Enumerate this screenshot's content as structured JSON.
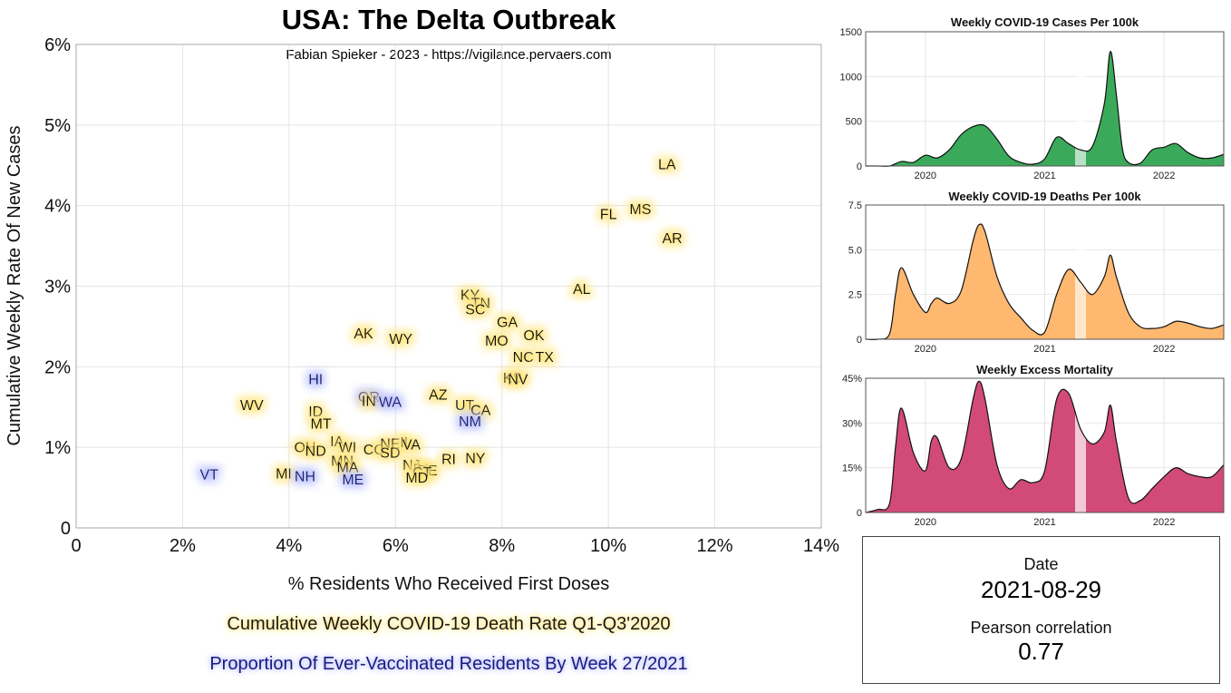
{
  "title": "USA: The Delta Outbreak",
  "subtitle": "Fabian Spieker - 2023 - https://vigilance.pervaers.com",
  "legend_death_rate": "Cumulative Weekly COVID-19 Death Rate Q1-Q3'2020",
  "legend_vaccinated": "Proportion Of Ever-Vaccinated Residents By Week 27/2021",
  "info": {
    "date_label": "Date",
    "date_value": "2021-08-29",
    "corr_label": "Pearson correlation",
    "corr_value": "0.77"
  },
  "colors": {
    "high_death_glow": "#ffe680",
    "low_death_glow": "#b8bfff",
    "cases_fill": "#3aaa5a",
    "deaths_fill": "#ffb870",
    "excess_fill": "#d24a78"
  },
  "chart_data": [
    {
      "type": "scatter",
      "title": "USA: The Delta Outbreak",
      "xlabel": "% Residents Who Received First Doses",
      "ylabel": "Cumulative Weekly Rate Of New Cases",
      "xlim": [
        0,
        14
      ],
      "ylim": [
        0,
        6
      ],
      "xticks": [
        "0",
        "2%",
        "4%",
        "6%",
        "8%",
        "10%",
        "12%",
        "14%"
      ],
      "yticks": [
        "0",
        "1%",
        "2%",
        "3%",
        "4%",
        "5%",
        "6%"
      ],
      "grid": true,
      "points": [
        {
          "label": "LA",
          "x": 11.1,
          "y": 4.52,
          "group": "high"
        },
        {
          "label": "FL",
          "x": 10.0,
          "y": 3.9,
          "group": "high"
        },
        {
          "label": "MS",
          "x": 10.6,
          "y": 3.96,
          "group": "high"
        },
        {
          "label": "AR",
          "x": 11.2,
          "y": 3.6,
          "group": "high"
        },
        {
          "label": "AL",
          "x": 9.5,
          "y": 2.97,
          "group": "high"
        },
        {
          "label": "KY",
          "x": 7.4,
          "y": 2.9,
          "group": "high"
        },
        {
          "label": "TN",
          "x": 7.6,
          "y": 2.8,
          "group": "high"
        },
        {
          "label": "SC",
          "x": 7.5,
          "y": 2.72,
          "group": "high"
        },
        {
          "label": "GA",
          "x": 8.1,
          "y": 2.56,
          "group": "high"
        },
        {
          "label": "OK",
          "x": 8.6,
          "y": 2.4,
          "group": "high"
        },
        {
          "label": "MO",
          "x": 7.9,
          "y": 2.33,
          "group": "high"
        },
        {
          "label": "NC",
          "x": 8.4,
          "y": 2.13,
          "group": "high"
        },
        {
          "label": "TX",
          "x": 8.8,
          "y": 2.13,
          "group": "high"
        },
        {
          "label": "KS",
          "x": 8.2,
          "y": 1.87,
          "group": "high"
        },
        {
          "label": "NV",
          "x": 8.3,
          "y": 1.85,
          "group": "high"
        },
        {
          "label": "AK",
          "x": 5.4,
          "y": 2.42,
          "group": "high"
        },
        {
          "label": "WY",
          "x": 6.1,
          "y": 2.35,
          "group": "high"
        },
        {
          "label": "HI",
          "x": 4.5,
          "y": 1.85,
          "group": "low"
        },
        {
          "label": "OR",
          "x": 5.5,
          "y": 1.63,
          "group": "low"
        },
        {
          "label": "IN",
          "x": 5.5,
          "y": 1.58,
          "group": "high"
        },
        {
          "label": "WA",
          "x": 5.9,
          "y": 1.57,
          "group": "low"
        },
        {
          "label": "AZ",
          "x": 6.8,
          "y": 1.66,
          "group": "high"
        },
        {
          "label": "UT",
          "x": 7.3,
          "y": 1.53,
          "group": "high"
        },
        {
          "label": "CA",
          "x": 7.6,
          "y": 1.47,
          "group": "high"
        },
        {
          "label": "NM",
          "x": 7.4,
          "y": 1.33,
          "group": "low"
        },
        {
          "label": "WV",
          "x": 3.3,
          "y": 1.53,
          "group": "high"
        },
        {
          "label": "ID",
          "x": 4.5,
          "y": 1.45,
          "group": "high"
        },
        {
          "label": "MT",
          "x": 4.6,
          "y": 1.3,
          "group": "high"
        },
        {
          "label": "IA",
          "x": 4.9,
          "y": 1.08,
          "group": "high"
        },
        {
          "label": "OH",
          "x": 4.3,
          "y": 1.01,
          "group": "high"
        },
        {
          "label": "ND",
          "x": 4.5,
          "y": 0.96,
          "group": "high"
        },
        {
          "label": "WI",
          "x": 5.1,
          "y": 1.01,
          "group": "high"
        },
        {
          "label": "MN",
          "x": 5.0,
          "y": 0.84,
          "group": "high"
        },
        {
          "label": "MA",
          "x": 5.1,
          "y": 0.76,
          "group": "high"
        },
        {
          "label": "ME",
          "x": 5.2,
          "y": 0.61,
          "group": "low"
        },
        {
          "label": "CO",
          "x": 5.6,
          "y": 0.98,
          "group": "high"
        },
        {
          "label": "NE",
          "x": 5.9,
          "y": 1.05,
          "group": "high"
        },
        {
          "label": "SD",
          "x": 5.9,
          "y": 0.94,
          "group": "high"
        },
        {
          "label": "IL",
          "x": 6.2,
          "y": 1.07,
          "group": "high"
        },
        {
          "label": "VA",
          "x": 6.3,
          "y": 1.04,
          "group": "high"
        },
        {
          "label": "NJ",
          "x": 6.3,
          "y": 0.79,
          "group": "high"
        },
        {
          "label": "PA",
          "x": 6.5,
          "y": 0.74,
          "group": "high"
        },
        {
          "label": "DE",
          "x": 6.6,
          "y": 0.72,
          "group": "high"
        },
        {
          "label": "CT",
          "x": 6.5,
          "y": 0.7,
          "group": "high"
        },
        {
          "label": "MD",
          "x": 6.4,
          "y": 0.63,
          "group": "high"
        },
        {
          "label": "RI",
          "x": 7.0,
          "y": 0.86,
          "group": "high"
        },
        {
          "label": "NY",
          "x": 7.5,
          "y": 0.87,
          "group": "high"
        },
        {
          "label": "VT",
          "x": 2.5,
          "y": 0.67,
          "group": "low"
        },
        {
          "label": "MI",
          "x": 3.9,
          "y": 0.68,
          "group": "high"
        },
        {
          "label": "NH",
          "x": 4.3,
          "y": 0.65,
          "group": "low"
        }
      ]
    },
    {
      "type": "area",
      "title": "Weekly COVID-19 Cases Per 100k",
      "ylim": [
        0,
        1500
      ],
      "yticks": [
        "0",
        "500",
        "1000",
        "1500"
      ],
      "xticks": [
        "2020",
        "2021",
        "2022"
      ],
      "xlim": [
        2019.5,
        2022.5
      ],
      "highlight_x": 2021.3,
      "x": [
        2019.5,
        2019.6,
        2019.7,
        2019.8,
        2019.9,
        2020.0,
        2020.1,
        2020.2,
        2020.3,
        2020.4,
        2020.5,
        2020.6,
        2020.7,
        2020.8,
        2020.9,
        2021.0,
        2021.1,
        2021.2,
        2021.3,
        2021.4,
        2021.5,
        2021.55,
        2021.6,
        2021.65,
        2021.7,
        2021.8,
        2021.9,
        2022.0,
        2022.1,
        2022.2,
        2022.3,
        2022.4,
        2022.5
      ],
      "values": [
        0,
        0,
        0,
        50,
        40,
        120,
        90,
        180,
        350,
        440,
        450,
        300,
        110,
        40,
        20,
        80,
        320,
        250,
        180,
        220,
        700,
        1280,
        800,
        200,
        40,
        30,
        180,
        210,
        250,
        150,
        90,
        90,
        130
      ]
    },
    {
      "type": "area",
      "title": "Weekly COVID-19 Deaths Per 100k",
      "ylim": [
        0,
        7.5
      ],
      "yticks": [
        "0",
        "2.5",
        "5.0",
        "7.5"
      ],
      "xticks": [
        "2020",
        "2021",
        "2022"
      ],
      "xlim": [
        2019.5,
        2022.5
      ],
      "highlight_x": 2021.3,
      "x": [
        2019.5,
        2019.6,
        2019.7,
        2019.75,
        2019.8,
        2019.9,
        2020.0,
        2020.05,
        2020.1,
        2020.2,
        2020.3,
        2020.4,
        2020.45,
        2020.5,
        2020.6,
        2020.7,
        2020.8,
        2020.9,
        2021.0,
        2021.1,
        2021.2,
        2021.3,
        2021.4,
        2021.5,
        2021.55,
        2021.6,
        2021.7,
        2021.8,
        2021.9,
        2022.0,
        2022.1,
        2022.2,
        2022.3,
        2022.4,
        2022.5
      ],
      "values": [
        0,
        0,
        0.3,
        2.5,
        4.0,
        2.5,
        1.5,
        2.0,
        2.3,
        2.0,
        2.7,
        5.5,
        6.4,
        6.0,
        3.5,
        2.0,
        1.2,
        0.5,
        0.4,
        2.5,
        3.9,
        3.2,
        2.5,
        3.5,
        4.7,
        3.5,
        1.5,
        0.7,
        0.6,
        0.7,
        1.0,
        0.9,
        0.7,
        0.6,
        0.8
      ]
    },
    {
      "type": "area",
      "title": "Weekly Excess Mortality",
      "ylim": [
        0,
        45
      ],
      "yticks": [
        "0",
        "15%",
        "30%",
        "45%"
      ],
      "xticks": [
        "2020",
        "2021",
        "2022"
      ],
      "xlim": [
        2019.5,
        2022.5
      ],
      "highlight_x": 2021.3,
      "x": [
        2019.5,
        2019.6,
        2019.7,
        2019.75,
        2019.8,
        2019.9,
        2020.0,
        2020.05,
        2020.1,
        2020.2,
        2020.3,
        2020.4,
        2020.45,
        2020.5,
        2020.6,
        2020.7,
        2020.8,
        2020.9,
        2021.0,
        2021.1,
        2021.2,
        2021.3,
        2021.4,
        2021.5,
        2021.55,
        2021.6,
        2021.7,
        2021.8,
        2021.9,
        2022.0,
        2022.1,
        2022.2,
        2022.3,
        2022.4,
        2022.5
      ],
      "values": [
        0,
        1,
        3,
        22,
        35,
        20,
        14,
        24,
        25,
        15,
        18,
        38,
        44,
        38,
        16,
        8,
        11,
        10,
        14,
        38,
        40,
        28,
        23,
        27,
        36,
        24,
        5,
        4,
        8,
        12,
        15,
        13,
        12,
        12,
        16
      ]
    }
  ]
}
